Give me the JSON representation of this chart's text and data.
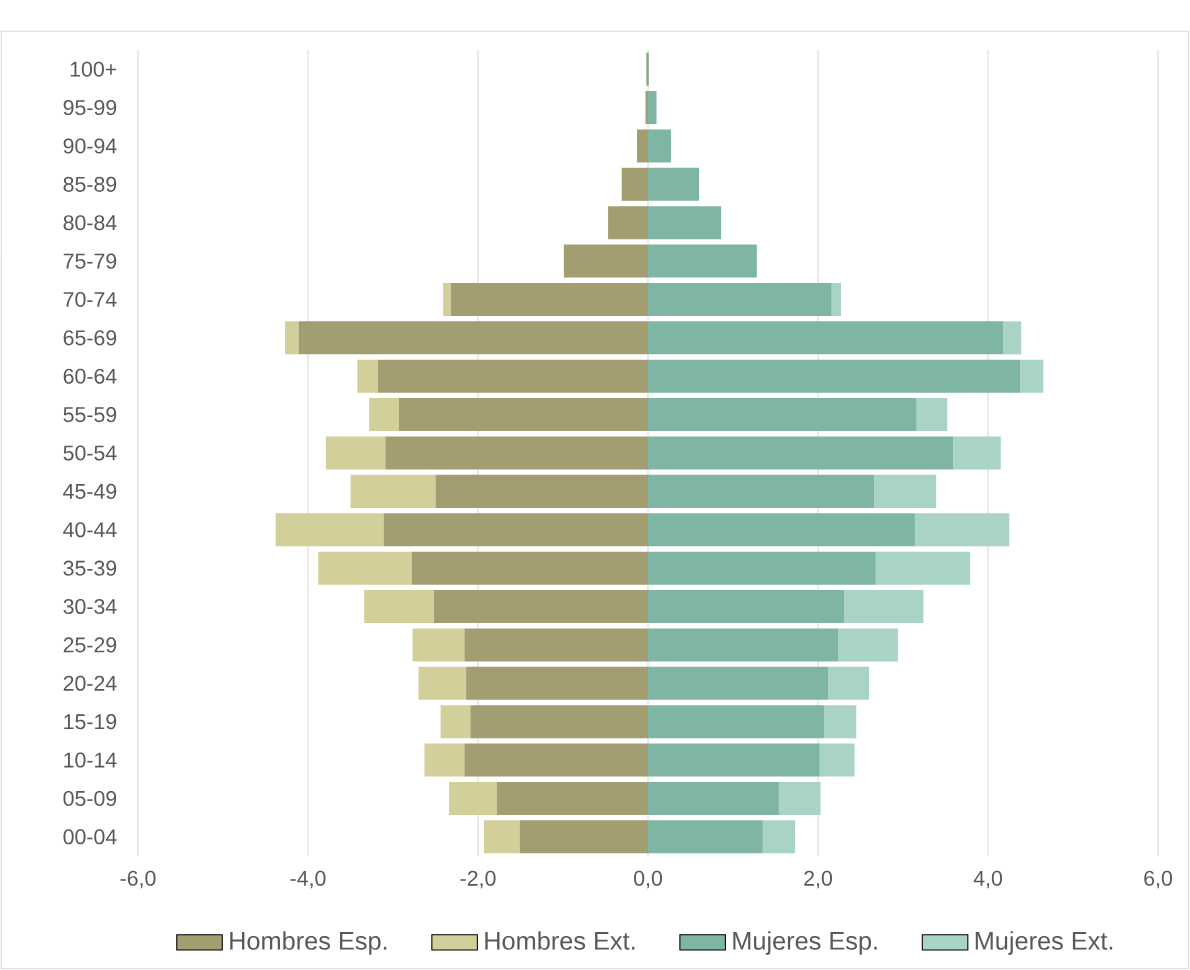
{
  "chart_data": {
    "type": "bar",
    "orientation": "horizontal",
    "stacked": true,
    "categories": [
      "100+",
      "95-99",
      "90-94",
      "85-89",
      "80-84",
      "75-79",
      "70-74",
      "65-69",
      "60-64",
      "55-59",
      "50-54",
      "45-49",
      "40-44",
      "35-39",
      "30-34",
      "25-29",
      "20-24",
      "15-19",
      "10-14",
      "05-09",
      "00-04"
    ],
    "series": [
      {
        "name": "Hombres Esp.",
        "color": "#a39e72",
        "values": [
          -0.02,
          -0.03,
          -0.13,
          -0.31,
          -0.47,
          -0.99,
          -2.32,
          -4.11,
          -3.18,
          -2.93,
          -3.09,
          -2.5,
          -3.11,
          -2.78,
          -2.52,
          -2.16,
          -2.14,
          -2.09,
          -2.16,
          -1.78,
          -1.51
        ]
      },
      {
        "name": "Hombres Ext.",
        "color": "#d2cf9a",
        "values": [
          0,
          0,
          0,
          0,
          0,
          0,
          -0.09,
          -0.16,
          -0.24,
          -0.35,
          -0.7,
          -1.0,
          -1.27,
          -1.1,
          -0.82,
          -0.61,
          -0.56,
          -0.35,
          -0.47,
          -0.56,
          -0.42
        ]
      },
      {
        "name": "Mujeres Esp.",
        "color": "#7fb5a5",
        "values": [
          0.01,
          0.1,
          0.27,
          0.6,
          0.86,
          1.28,
          2.16,
          4.18,
          4.38,
          3.16,
          3.59,
          2.66,
          3.14,
          2.68,
          2.31,
          2.24,
          2.12,
          2.07,
          2.02,
          1.54,
          1.35
        ]
      },
      {
        "name": "Mujeres Ext.",
        "color": "#a9d3c6",
        "values": [
          0,
          0,
          0,
          0,
          0,
          null,
          0.11,
          0.21,
          0.27,
          0.36,
          0.56,
          0.73,
          1.11,
          1.11,
          0.93,
          0.7,
          0.48,
          0.38,
          0.41,
          0.49,
          0.38
        ]
      }
    ],
    "xlim": [
      -6,
      6
    ],
    "xticks": [
      {
        "value": -6,
        "label": "-6,0"
      },
      {
        "value": -4,
        "label": "-4,0"
      },
      {
        "value": -2,
        "label": "-2,0"
      },
      {
        "value": 0,
        "label": "0,0"
      },
      {
        "value": 2,
        "label": "2,0"
      },
      {
        "value": 4,
        "label": "4,0"
      },
      {
        "value": 6,
        "label": "6,0"
      }
    ],
    "grid": "x",
    "legend": "bottom"
  }
}
